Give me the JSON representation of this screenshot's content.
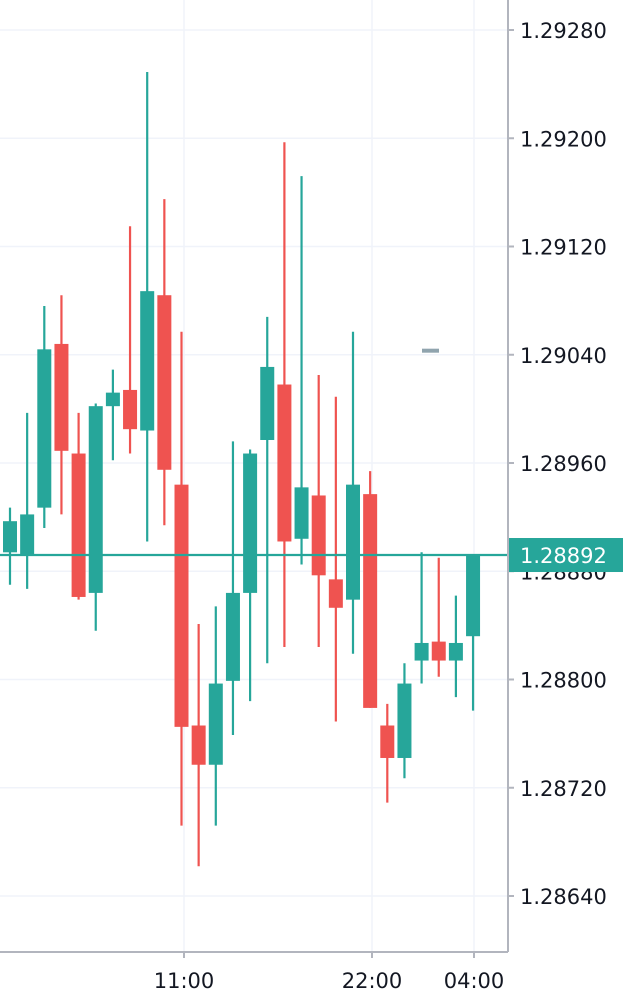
{
  "chart_data": {
    "type": "candlestick",
    "colors": {
      "up": "#26a69a",
      "down": "#ef5350",
      "grid": "#f0f3fa",
      "axis": "#b2b5be",
      "text": "#131722",
      "price_line": "#26a69a",
      "marker": "#90a4ae"
    },
    "y_axis": {
      "ticks": [
        "1.29280",
        "1.29200",
        "1.29120",
        "1.29040",
        "1.28960",
        "1.28880",
        "1.28800",
        "1.28720",
        "1.28640"
      ],
      "range": [
        1.2858,
        1.2932
      ]
    },
    "x_axis": {
      "ticks": [
        "11:00",
        "22:00",
        "04:00"
      ]
    },
    "last_price": "1.28892",
    "candles": [
      {
        "o": 1.28894,
        "h": 1.28927,
        "l": 1.2887,
        "c": 1.28917
      },
      {
        "o": 1.28892,
        "h": 1.28997,
        "l": 1.28867,
        "c": 1.28922
      },
      {
        "o": 1.28927,
        "h": 1.29076,
        "l": 1.28912,
        "c": 1.29044
      },
      {
        "o": 1.29048,
        "h": 1.29084,
        "l": 1.28922,
        "c": 1.28969
      },
      {
        "o": 1.28967,
        "h": 1.28997,
        "l": 1.28859,
        "c": 1.28861
      },
      {
        "o": 1.28864,
        "h": 1.29004,
        "l": 1.28836,
        "c": 1.29002
      },
      {
        "o": 1.29002,
        "h": 1.29029,
        "l": 1.28962,
        "c": 1.29012
      },
      {
        "o": 1.29014,
        "h": 1.29135,
        "l": 1.28967,
        "c": 1.28985
      },
      {
        "o": 1.28984,
        "h": 1.29249,
        "l": 1.28902,
        "c": 1.29087
      },
      {
        "o": 1.29084,
        "h": 1.29155,
        "l": 1.28914,
        "c": 1.28955
      },
      {
        "o": 1.28944,
        "h": 1.29057,
        "l": 1.28692,
        "c": 1.28765
      },
      {
        "o": 1.28766,
        "h": 1.28841,
        "l": 1.28662,
        "c": 1.28737
      },
      {
        "o": 1.28737,
        "h": 1.28854,
        "l": 1.28692,
        "c": 1.28797
      },
      {
        "o": 1.28799,
        "h": 1.28976,
        "l": 1.28759,
        "c": 1.28864
      },
      {
        "o": 1.28864,
        "h": 1.2897,
        "l": 1.28784,
        "c": 1.28967
      },
      {
        "o": 1.28977,
        "h": 1.29068,
        "l": 1.28812,
        "c": 1.29031
      },
      {
        "o": 1.29018,
        "h": 1.29197,
        "l": 1.28824,
        "c": 1.28902
      },
      {
        "o": 1.28904,
        "h": 1.29172,
        "l": 1.28885,
        "c": 1.28942
      },
      {
        "o": 1.28936,
        "h": 1.29025,
        "l": 1.28824,
        "c": 1.28877
      },
      {
        "o": 1.28874,
        "h": 1.29009,
        "l": 1.28769,
        "c": 1.28853
      },
      {
        "o": 1.28859,
        "h": 1.29057,
        "l": 1.28819,
        "c": 1.28944
      },
      {
        "o": 1.28937,
        "h": 1.28954,
        "l": 1.28779,
        "c": 1.28779
      },
      {
        "o": 1.28766,
        "h": 1.28782,
        "l": 1.28709,
        "c": 1.28742
      },
      {
        "o": 1.28742,
        "h": 1.28812,
        "l": 1.28727,
        "c": 1.28797
      },
      {
        "o": 1.28814,
        "h": 1.28894,
        "l": 1.28797,
        "c": 1.28827
      },
      {
        "o": 1.28828,
        "h": 1.2889,
        "l": 1.28802,
        "c": 1.28814
      },
      {
        "o": 1.28814,
        "h": 1.28862,
        "l": 1.28787,
        "c": 1.28827
      },
      {
        "o": 1.28832,
        "h": 1.28892,
        "l": 1.28777,
        "c": 1.28892
      }
    ],
    "marker_value": 1.29043,
    "grid": true,
    "legend": "none"
  }
}
